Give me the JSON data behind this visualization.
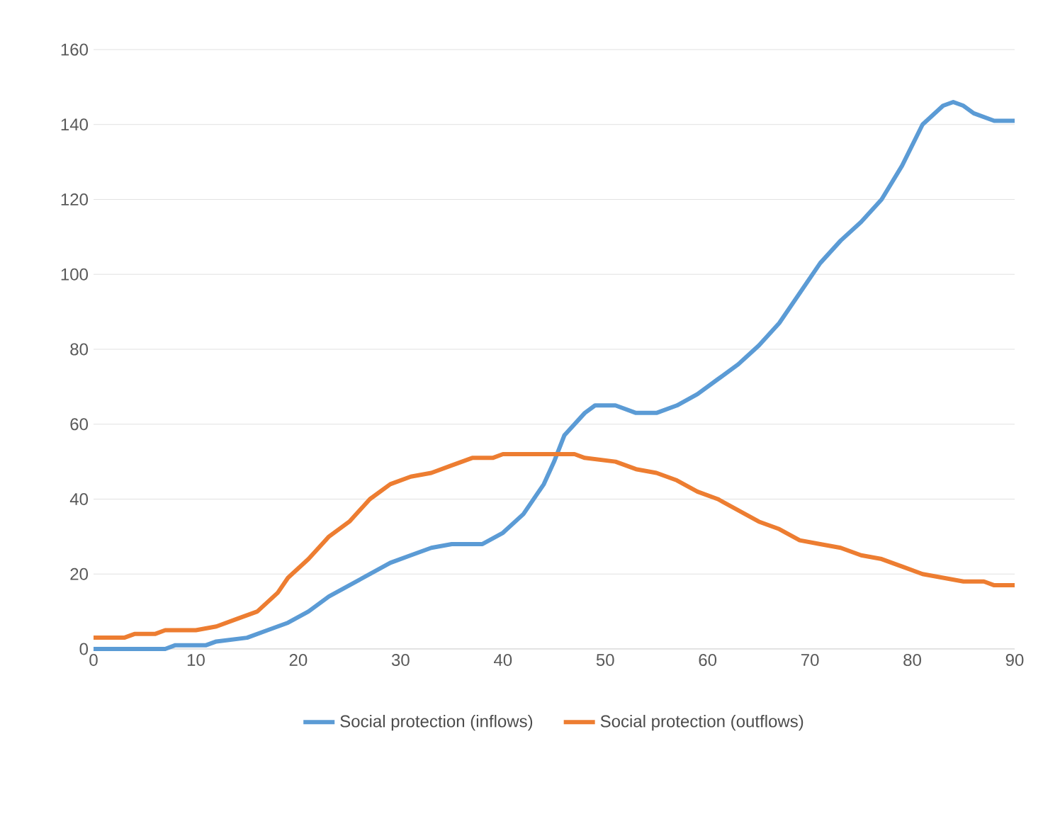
{
  "chart_data": {
    "type": "line",
    "xlim": [
      0,
      90
    ],
    "xticks": [
      0,
      10,
      20,
      30,
      40,
      50,
      60,
      70,
      80,
      90
    ],
    "ylim": [
      0,
      160
    ],
    "yticks": [
      0,
      20,
      40,
      60,
      80,
      100,
      120,
      140,
      160
    ],
    "grid": "y",
    "legend": "bottom",
    "marker": "none",
    "line_style": "solid",
    "series": [
      {
        "name": "Social protection (inflows)",
        "color": "#5b9bd5",
        "x": [
          0,
          4,
          7,
          8,
          11,
          12,
          15,
          17,
          19,
          21,
          23,
          25,
          27,
          29,
          31,
          33,
          35,
          38,
          40,
          42,
          44,
          45,
          46,
          48,
          49,
          51,
          53,
          55,
          57,
          59,
          61,
          63,
          65,
          67,
          69,
          71,
          73,
          75,
          77,
          79,
          81,
          83,
          84,
          85,
          86,
          88,
          90
        ],
        "values": [
          0,
          0,
          0,
          1,
          1,
          2,
          3,
          5,
          7,
          10,
          14,
          17,
          20,
          23,
          25,
          27,
          28,
          28,
          31,
          36,
          44,
          50,
          57,
          63,
          65,
          65,
          63,
          63,
          65,
          68,
          72,
          76,
          81,
          87,
          95,
          103,
          109,
          114,
          120,
          129,
          140,
          145,
          146,
          145,
          143,
          141,
          141
        ]
      },
      {
        "name": "Social protection (outflows)",
        "color": "#ed7d31",
        "x": [
          0,
          3,
          4,
          6,
          7,
          10,
          12,
          14,
          16,
          18,
          19,
          21,
          23,
          25,
          27,
          29,
          31,
          33,
          35,
          37,
          39,
          40,
          45,
          47,
          48,
          51,
          53,
          55,
          57,
          59,
          61,
          63,
          65,
          67,
          69,
          71,
          73,
          75,
          77,
          79,
          81,
          83,
          85,
          87,
          88,
          90
        ],
        "values": [
          3,
          3,
          4,
          4,
          5,
          5,
          6,
          8,
          10,
          15,
          19,
          24,
          30,
          34,
          40,
          44,
          46,
          47,
          49,
          51,
          51,
          52,
          52,
          52,
          51,
          50,
          48,
          47,
          45,
          42,
          40,
          37,
          34,
          32,
          29,
          28,
          27,
          25,
          24,
          22,
          20,
          19,
          18,
          18,
          17,
          17
        ]
      }
    ]
  }
}
